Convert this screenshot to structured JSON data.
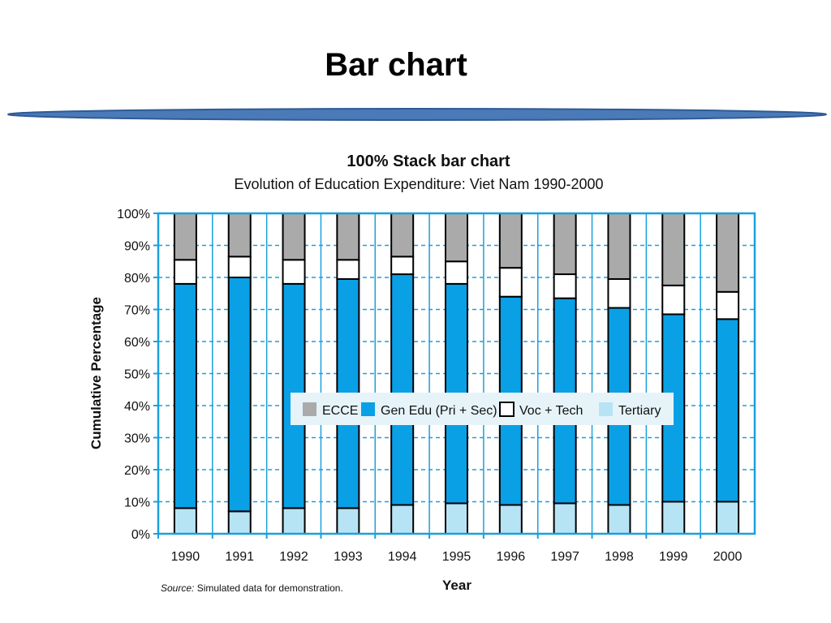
{
  "slide": {
    "title": "Bar chart"
  },
  "colors": {
    "divider": "#4a7ab8",
    "divider_edge": "#2f5a94",
    "axis": "#1aa0dc",
    "grid": "#1aa0dc",
    "ecce": "#aaaaaa",
    "gen_edu": "#0aa0e6",
    "voc_tech": "#ffffff",
    "tertiary": "#b7e4f5",
    "legend_bg": "#e6f4fa"
  },
  "chart_data": {
    "type": "bar",
    "stacked": true,
    "title": "100% Stack bar chart",
    "subtitle": "Evolution of Education Expenditure: Viet Nam 1990-2000",
    "xlabel": "Year",
    "ylabel": "Cumulative Percentage",
    "ylim": [
      0,
      100
    ],
    "y_ticks": [
      "0%",
      "10%",
      "20%",
      "30%",
      "40%",
      "50%",
      "60%",
      "70%",
      "80%",
      "90%",
      "100%"
    ],
    "categories": [
      "1990",
      "1991",
      "1992",
      "1993",
      "1994",
      "1995",
      "1996",
      "1997",
      "1998",
      "1999",
      "2000"
    ],
    "series": [
      {
        "name": "Tertiary",
        "color_key": "tertiary",
        "values": [
          8,
          7,
          8,
          8,
          9,
          9.5,
          9,
          9.5,
          9,
          10,
          10
        ]
      },
      {
        "name": "Gen Edu (Pri + Sec)",
        "color_key": "gen_edu",
        "values": [
          70,
          73,
          70,
          71.5,
          72,
          68.5,
          65,
          64,
          61.5,
          58.5,
          57
        ]
      },
      {
        "name": "Voc + Tech",
        "color_key": "voc_tech",
        "values": [
          7.5,
          6.5,
          7.5,
          6,
          5.5,
          7,
          9,
          7.5,
          9,
          9,
          8.5
        ]
      },
      {
        "name": "ECCE",
        "color_key": "ecce",
        "values": [
          14.5,
          13.5,
          14.5,
          14.5,
          13.5,
          15,
          17,
          19,
          20.5,
          22.5,
          24.5
        ]
      }
    ],
    "legend_order": [
      "ECCE",
      "Gen Edu (Pri + Sec)",
      "Voc + Tech",
      "Tertiary"
    ],
    "legend_position": "center",
    "grid": true,
    "source_prefix": "Source:",
    "source_text": "Simulated data for demonstration."
  }
}
